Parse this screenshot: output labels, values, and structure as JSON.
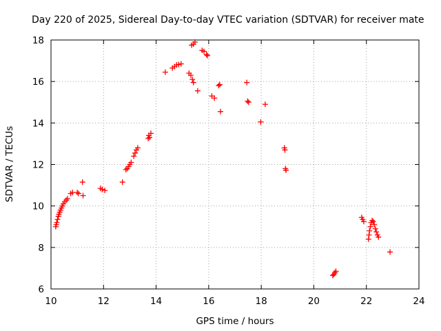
{
  "chart_data": {
    "type": "scatter",
    "title": "Day 220 of 2025, Sidereal Day-to-day VTEC variation (SDTVAR) for receiver mate",
    "xlabel": "GPS time / hours",
    "ylabel": "SDTVAR / TECUs",
    "xlim": [
      10,
      24
    ],
    "ylim": [
      6,
      18
    ],
    "xticks": [
      "10",
      "12",
      "14",
      "16",
      "18",
      "20",
      "22",
      "24"
    ],
    "yticks": [
      "6",
      "8",
      "10",
      "12",
      "14",
      "16",
      "18"
    ],
    "grid": true,
    "marker": "plus",
    "color": "#ff0000",
    "series": [
      {
        "name": "SDTVAR",
        "points": [
          [
            10.18,
            9.0
          ],
          [
            10.2,
            9.1
          ],
          [
            10.22,
            9.2
          ],
          [
            10.25,
            9.35
          ],
          [
            10.28,
            9.5
          ],
          [
            10.3,
            9.6
          ],
          [
            10.33,
            9.7
          ],
          [
            10.36,
            9.8
          ],
          [
            10.4,
            9.9
          ],
          [
            10.43,
            10.0
          ],
          [
            10.47,
            10.1
          ],
          [
            10.52,
            10.2
          ],
          [
            10.58,
            10.28
          ],
          [
            10.63,
            10.35
          ],
          [
            10.75,
            10.6
          ],
          [
            10.82,
            10.65
          ],
          [
            11.0,
            10.65
          ],
          [
            11.05,
            10.6
          ],
          [
            11.2,
            11.15
          ],
          [
            11.22,
            10.5
          ],
          [
            11.88,
            10.85
          ],
          [
            11.95,
            10.8
          ],
          [
            12.05,
            10.75
          ],
          [
            12.72,
            11.15
          ],
          [
            12.85,
            11.75
          ],
          [
            12.9,
            11.8
          ],
          [
            12.95,
            11.9
          ],
          [
            13.0,
            12.0
          ],
          [
            13.05,
            12.1
          ],
          [
            13.15,
            12.4
          ],
          [
            13.2,
            12.55
          ],
          [
            13.25,
            12.7
          ],
          [
            13.3,
            12.8
          ],
          [
            13.7,
            13.25
          ],
          [
            13.72,
            13.4
          ],
          [
            13.75,
            13.3
          ],
          [
            13.8,
            13.5
          ],
          [
            14.35,
            16.45
          ],
          [
            14.62,
            16.65
          ],
          [
            14.7,
            16.72
          ],
          [
            14.78,
            16.8
          ],
          [
            14.86,
            16.82
          ],
          [
            14.95,
            16.85
          ],
          [
            15.25,
            16.4
          ],
          [
            15.32,
            16.3
          ],
          [
            15.38,
            16.1
          ],
          [
            15.42,
            15.95
          ],
          [
            15.35,
            17.75
          ],
          [
            15.42,
            17.8
          ],
          [
            15.48,
            17.9
          ],
          [
            15.58,
            15.55
          ],
          [
            15.75,
            17.5
          ],
          [
            15.82,
            17.45
          ],
          [
            15.92,
            17.3
          ],
          [
            15.95,
            17.25
          ],
          [
            16.12,
            15.3
          ],
          [
            16.22,
            15.2
          ],
          [
            16.38,
            15.8
          ],
          [
            16.42,
            15.85
          ],
          [
            16.45,
            14.55
          ],
          [
            17.45,
            15.95
          ],
          [
            17.48,
            15.05
          ],
          [
            17.52,
            15.0
          ],
          [
            17.98,
            14.05
          ],
          [
            18.15,
            14.9
          ],
          [
            18.88,
            12.8
          ],
          [
            18.9,
            12.7
          ],
          [
            18.92,
            11.8
          ],
          [
            18.94,
            11.72
          ],
          [
            20.72,
            6.65
          ],
          [
            20.76,
            6.7
          ],
          [
            20.8,
            6.78
          ],
          [
            20.84,
            6.85
          ],
          [
            21.82,
            9.45
          ],
          [
            21.86,
            9.35
          ],
          [
            21.9,
            9.25
          ],
          [
            22.08,
            8.4
          ],
          [
            22.1,
            8.6
          ],
          [
            22.12,
            8.8
          ],
          [
            22.15,
            9.0
          ],
          [
            22.18,
            9.2
          ],
          [
            22.22,
            9.3
          ],
          [
            22.26,
            9.25
          ],
          [
            22.3,
            9.1
          ],
          [
            22.34,
            8.9
          ],
          [
            22.38,
            8.75
          ],
          [
            22.42,
            8.6
          ],
          [
            22.46,
            8.5
          ],
          [
            22.9,
            7.78
          ]
        ]
      }
    ]
  }
}
